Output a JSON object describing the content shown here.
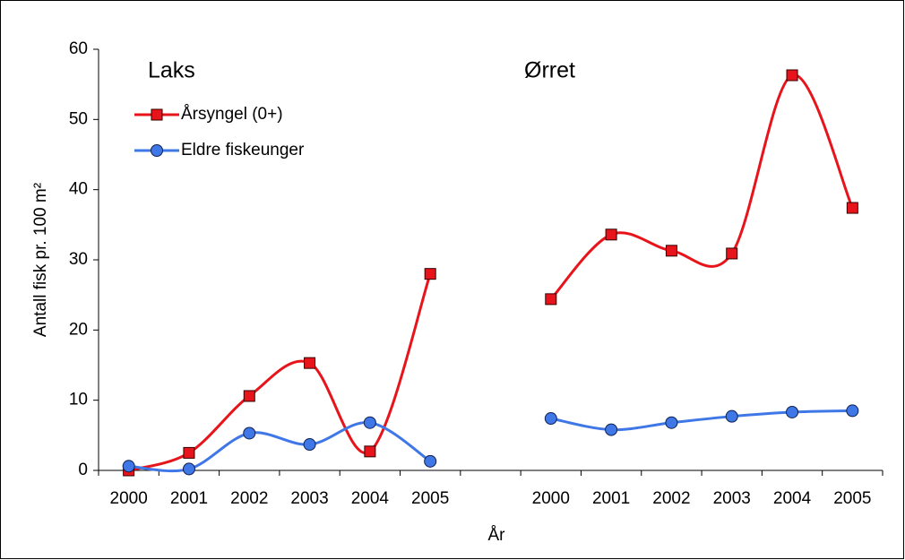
{
  "chart_data": {
    "type": "line",
    "smooth": true,
    "y_label": "Antall fisk pr. 100 m²",
    "x_label": "År",
    "annotations": [
      "Laks",
      "Ørret"
    ],
    "categories": [
      "2000",
      "2001",
      "2002",
      "2003",
      "2004",
      "2005",
      null,
      "2000",
      "2001",
      "2002",
      "2003",
      "2004",
      "2005"
    ],
    "series": [
      {
        "name": "Årsyngel (0+)",
        "color": "#e8141b",
        "marker": "square",
        "values": [
          0,
          2.5,
          10.6,
          15.3,
          2.7,
          28.0,
          null,
          24.4,
          33.6,
          31.3,
          30.9,
          56.3,
          37.4
        ]
      },
      {
        "name": "Eldre fiskeunger",
        "color": "#3f78e6",
        "marker": "circle",
        "values": [
          0.6,
          0.2,
          5.3,
          3.7,
          6.8,
          1.3,
          null,
          7.4,
          5.8,
          6.8,
          7.7,
          8.3,
          8.5
        ]
      }
    ],
    "ylim": [
      0,
      60
    ],
    "yticks": [
      0,
      10,
      20,
      30,
      40,
      50,
      60
    ],
    "grid": false,
    "legend": "upper left"
  }
}
